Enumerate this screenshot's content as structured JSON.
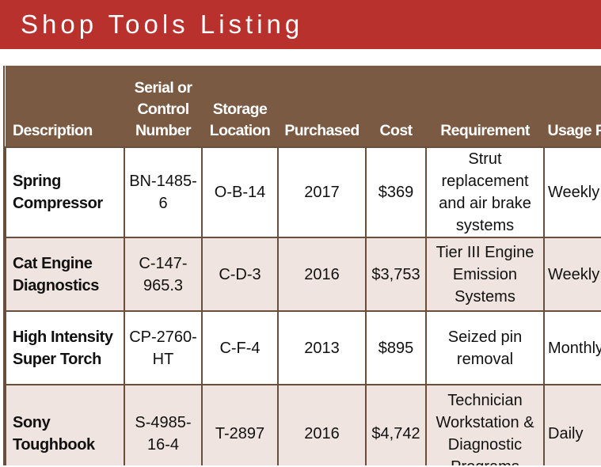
{
  "title": "Shop Tools Listing",
  "columns": [
    "Description",
    "Serial or Control Number",
    "Storage Location",
    "Purchased",
    "Cost",
    "Requirement",
    "Usage Frequency"
  ],
  "rows": [
    {
      "description": "Spring Compressor",
      "serial": "BN-1485-6",
      "storage": "O-B-14",
      "purchased": "2017",
      "cost": "$369",
      "requirement": "Strut replacement and air brake systems",
      "usage": "Weekly"
    },
    {
      "description": "Cat Engine Diagnostics",
      "serial": "C-147-965.3",
      "storage": "C-D-3",
      "purchased": "2016",
      "cost": "$3,753",
      "requirement": "Tier III Engine Emission Systems",
      "usage": "Weekly"
    },
    {
      "description": "High Intensity Super Torch",
      "serial": "CP-2760-HT",
      "storage": "C-F-4",
      "purchased": "2013",
      "cost": "$895",
      "requirement": "Seized pin removal",
      "usage": "Monthly"
    },
    {
      "description": "Sony Toughbook",
      "serial": "S-4985-16-4",
      "storage": "T-2897",
      "purchased": "2016",
      "cost": "$4,742",
      "requirement": "Technician Workstation & Diagnostic Programs",
      "usage": "Daily"
    }
  ]
}
